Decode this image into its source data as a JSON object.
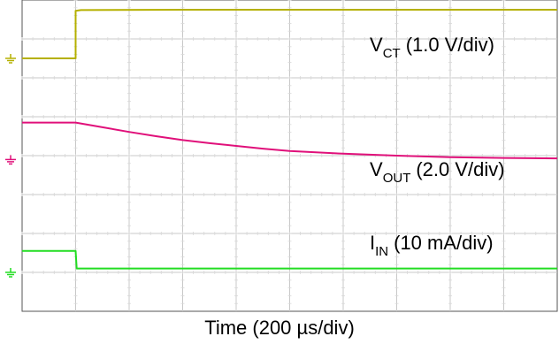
{
  "chart_data": {
    "type": "line",
    "title": "",
    "xlabel": "Time (200 µs/div)",
    "ylabel": "",
    "grid": true,
    "x_divisions": 10,
    "y_divisions": 8,
    "x_units_per_div": 200,
    "x_unit": "µs",
    "series": [
      {
        "id": "vct",
        "label_main": "V",
        "label_sub": "CT",
        "label_scale": "(1.0 V/div)",
        "color": "#b5b000",
        "ground_div": 1.5,
        "points": [
          [
            0,
            0
          ],
          [
            1.0,
            0
          ],
          [
            1.0,
            1.22
          ],
          [
            1.1,
            1.24
          ],
          [
            3,
            1.25
          ],
          [
            6,
            1.25
          ],
          [
            10,
            1.25
          ]
        ]
      },
      {
        "id": "vout",
        "label_main": "V",
        "label_sub": "OUT",
        "label_scale": "(2.0 V/div)",
        "color": "#e0107a",
        "ground_div": 4.1,
        "points": [
          [
            0,
            0.95
          ],
          [
            1.0,
            0.95
          ],
          [
            1.5,
            0.83
          ],
          [
            2,
            0.71
          ],
          [
            2.5,
            0.6
          ],
          [
            3,
            0.5
          ],
          [
            3.5,
            0.42
          ],
          [
            4,
            0.35
          ],
          [
            4.5,
            0.28
          ],
          [
            5,
            0.22
          ],
          [
            6,
            0.15
          ],
          [
            7,
            0.1
          ],
          [
            8,
            0.06
          ],
          [
            9,
            0.04
          ],
          [
            10,
            0.03
          ]
        ]
      },
      {
        "id": "iin",
        "label_main": "I",
        "label_sub": "IN",
        "label_scale": "(10 mA/div)",
        "color": "#22dd22",
        "ground_div": 7.0,
        "points": [
          [
            0,
            0.55
          ],
          [
            1.0,
            0.55
          ],
          [
            1.02,
            0.1
          ],
          [
            10,
            0.1
          ]
        ]
      }
    ]
  }
}
